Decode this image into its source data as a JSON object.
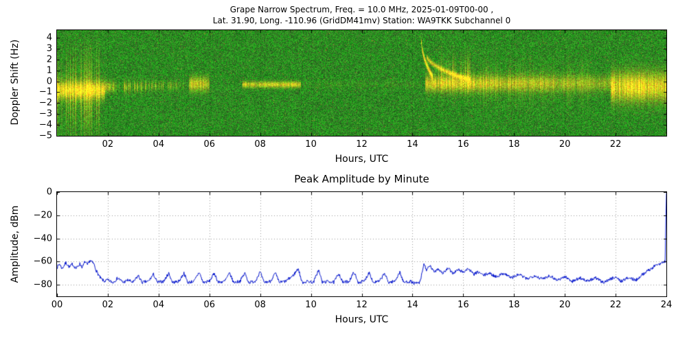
{
  "chart_data": [
    {
      "type": "heatmap",
      "title_lines": [
        "Grape Narrow Spectrum, Freq. = 10.0 MHz, 2025-01-09T00-00 ,",
        "Lat.  31.90, Long. -110.96 (GridDM41mv) Station: WA9TKK Subchannel 0"
      ],
      "xlabel": "Hours, UTC",
      "ylabel": "Doppler Shift (Hz)",
      "xlim": [
        0,
        24
      ],
      "ylim": [
        -5,
        4.7
      ],
      "x_ticks": [
        {
          "v": 2,
          "label": "02"
        },
        {
          "v": 4,
          "label": "04"
        },
        {
          "v": 6,
          "label": "06"
        },
        {
          "v": 8,
          "label": "08"
        },
        {
          "v": 10,
          "label": "10"
        },
        {
          "v": 12,
          "label": "12"
        },
        {
          "v": 14,
          "label": "14"
        },
        {
          "v": 16,
          "label": "16"
        },
        {
          "v": 18,
          "label": "18"
        },
        {
          "v": 20,
          "label": "20"
        },
        {
          "v": 22,
          "label": "22"
        }
      ],
      "y_ticks": [
        {
          "v": 4,
          "label": "4"
        },
        {
          "v": 3,
          "label": "3"
        },
        {
          "v": 2,
          "label": "2"
        },
        {
          "v": 1,
          "label": "1"
        },
        {
          "v": 0,
          "label": "0"
        },
        {
          "v": -1,
          "label": "−1"
        },
        {
          "v": -2,
          "label": "−2"
        },
        {
          "v": -3,
          "label": "−3"
        },
        {
          "v": -4,
          "label": "−4"
        },
        {
          "v": -5,
          "label": "−5"
        }
      ],
      "grid": true,
      "colors": {
        "background_noise": "#1c8a1c",
        "signal": "#ffee44"
      },
      "noise_seed": 42,
      "signal_bands": [
        {
          "h0": 0.0,
          "h1": 1.9,
          "center": -0.8,
          "width": 0.55,
          "strength": 1.0,
          "streaky": false
        },
        {
          "h0": 0.0,
          "h1": 1.7,
          "center": -1.2,
          "width": 2.3,
          "strength": 0.45,
          "streaky": true
        },
        {
          "h0": 1.9,
          "h1": 3.5,
          "center": -0.5,
          "width": 0.35,
          "strength": 0.7,
          "streaky": true
        },
        {
          "h0": 3.5,
          "h1": 5.1,
          "center": -0.4,
          "width": 0.3,
          "strength": 0.35,
          "streaky": true
        },
        {
          "h0": 5.2,
          "h1": 6.0,
          "center": -0.25,
          "width": 0.45,
          "strength": 0.75,
          "streaky": false
        },
        {
          "h0": 7.3,
          "h1": 9.6,
          "center": -0.3,
          "width": 0.2,
          "strength": 0.8,
          "streaky": false
        },
        {
          "h0": 9.6,
          "h1": 14.3,
          "center": -0.3,
          "width": 0.25,
          "strength": 0.1,
          "streaky": true
        },
        {
          "h0": 14.5,
          "h1": 21.8,
          "center": -0.2,
          "width": 0.5,
          "strength": 0.85,
          "fade_to": 0.55,
          "streaky": false
        },
        {
          "h0": 21.8,
          "h1": 24.0,
          "center": -0.5,
          "width": 0.9,
          "strength": 1.0,
          "streaky": false
        },
        {
          "h0": 15.0,
          "h1": 16.3,
          "center": 0.6,
          "width": 1.1,
          "strength": 0.45,
          "streaky": true
        },
        {
          "h0": 16.3,
          "h1": 21.0,
          "center": -0.2,
          "width": 1.3,
          "strength": 0.18,
          "streaky": true
        }
      ],
      "chirps": [
        {
          "h0": 14.35,
          "h1": 14.8,
          "y0": 3.9,
          "y1": 0.4,
          "sigma": 0.2,
          "strength": 1.0,
          "curve": 0.5
        },
        {
          "h0": 14.55,
          "h1": 16.3,
          "y0": 2.4,
          "y1": 0.1,
          "sigma": 0.16,
          "strength": 0.75,
          "curve": 0.55
        }
      ]
    },
    {
      "type": "line",
      "title": "Peak Amplitude by Minute",
      "xlabel": "Hours, UTC",
      "ylabel": "Amplitude, dBm",
      "xlim": [
        0,
        24
      ],
      "ylim": [
        -90,
        0
      ],
      "x_ticks": [
        {
          "v": 0,
          "label": "00"
        },
        {
          "v": 2,
          "label": "02"
        },
        {
          "v": 4,
          "label": "04"
        },
        {
          "v": 6,
          "label": "06"
        },
        {
          "v": 8,
          "label": "08"
        },
        {
          "v": 10,
          "label": "10"
        },
        {
          "v": 12,
          "label": "12"
        },
        {
          "v": 14,
          "label": "14"
        },
        {
          "v": 16,
          "label": "16"
        },
        {
          "v": 18,
          "label": "18"
        },
        {
          "v": 20,
          "label": "20"
        },
        {
          "v": 22,
          "label": "22"
        },
        {
          "v": 24,
          "label": "24"
        }
      ],
      "y_ticks": [
        {
          "v": 0,
          "label": "0"
        },
        {
          "v": -20,
          "label": "−20"
        },
        {
          "v": -40,
          "label": "−40"
        },
        {
          "v": -60,
          "label": "−60"
        },
        {
          "v": -80,
          "label": "−80"
        }
      ],
      "grid": true,
      "line_color": "#0011cc",
      "noise_amplitude": 1.4,
      "noise_seed": 7,
      "points": [
        [
          0.0,
          -65
        ],
        [
          0.1,
          -62
        ],
        [
          0.2,
          -66
        ],
        [
          0.35,
          -61
        ],
        [
          0.5,
          -65
        ],
        [
          0.6,
          -62
        ],
        [
          0.75,
          -66
        ],
        [
          0.9,
          -62
        ],
        [
          1.0,
          -65
        ],
        [
          1.1,
          -60
        ],
        [
          1.2,
          -63
        ],
        [
          1.3,
          -59
        ],
        [
          1.45,
          -62
        ],
        [
          1.55,
          -68
        ],
        [
          1.7,
          -74
        ],
        [
          1.85,
          -77
        ],
        [
          2.0,
          -76
        ],
        [
          2.2,
          -78
        ],
        [
          2.4,
          -74
        ],
        [
          2.6,
          -78
        ],
        [
          2.8,
          -76
        ],
        [
          3.0,
          -78
        ],
        [
          3.2,
          -72
        ],
        [
          3.35,
          -78
        ],
        [
          3.6,
          -77
        ],
        [
          3.8,
          -71
        ],
        [
          3.95,
          -78
        ],
        [
          4.2,
          -77
        ],
        [
          4.4,
          -70
        ],
        [
          4.55,
          -78
        ],
        [
          4.8,
          -77
        ],
        [
          5.0,
          -70
        ],
        [
          5.15,
          -78
        ],
        [
          5.4,
          -77
        ],
        [
          5.6,
          -69
        ],
        [
          5.75,
          -78
        ],
        [
          6.0,
          -77
        ],
        [
          6.2,
          -70
        ],
        [
          6.35,
          -78
        ],
        [
          6.6,
          -77
        ],
        [
          6.8,
          -70
        ],
        [
          6.95,
          -78
        ],
        [
          7.2,
          -77
        ],
        [
          7.4,
          -70
        ],
        [
          7.55,
          -78
        ],
        [
          7.8,
          -77
        ],
        [
          8.0,
          -69
        ],
        [
          8.15,
          -78
        ],
        [
          8.4,
          -77
        ],
        [
          8.6,
          -70
        ],
        [
          8.75,
          -78
        ],
        [
          9.0,
          -77
        ],
        [
          9.3,
          -72
        ],
        [
          9.5,
          -66
        ],
        [
          9.65,
          -78
        ],
        [
          9.9,
          -77
        ],
        [
          10.1,
          -78
        ],
        [
          10.3,
          -67
        ],
        [
          10.45,
          -78
        ],
        [
          10.7,
          -77
        ],
        [
          10.9,
          -78
        ],
        [
          11.1,
          -70
        ],
        [
          11.25,
          -78
        ],
        [
          11.5,
          -77
        ],
        [
          11.7,
          -69
        ],
        [
          11.85,
          -78
        ],
        [
          12.1,
          -77
        ],
        [
          12.3,
          -69
        ],
        [
          12.45,
          -78
        ],
        [
          12.7,
          -77
        ],
        [
          12.9,
          -70
        ],
        [
          13.05,
          -78
        ],
        [
          13.3,
          -77
        ],
        [
          13.5,
          -69
        ],
        [
          13.65,
          -78
        ],
        [
          13.9,
          -77
        ],
        [
          14.1,
          -79
        ],
        [
          14.3,
          -78
        ],
        [
          14.45,
          -62
        ],
        [
          14.55,
          -67
        ],
        [
          14.7,
          -64
        ],
        [
          14.85,
          -69
        ],
        [
          15.0,
          -66
        ],
        [
          15.2,
          -70
        ],
        [
          15.4,
          -66
        ],
        [
          15.6,
          -70
        ],
        [
          15.8,
          -67
        ],
        [
          16.0,
          -69
        ],
        [
          16.2,
          -66
        ],
        [
          16.4,
          -71
        ],
        [
          16.6,
          -69
        ],
        [
          16.8,
          -72
        ],
        [
          17.0,
          -70
        ],
        [
          17.3,
          -73
        ],
        [
          17.6,
          -70
        ],
        [
          17.9,
          -74
        ],
        [
          18.2,
          -71
        ],
        [
          18.5,
          -75
        ],
        [
          18.8,
          -72
        ],
        [
          19.1,
          -75
        ],
        [
          19.4,
          -72
        ],
        [
          19.7,
          -76
        ],
        [
          20.0,
          -73
        ],
        [
          20.3,
          -77
        ],
        [
          20.6,
          -74
        ],
        [
          20.9,
          -77
        ],
        [
          21.2,
          -74
        ],
        [
          21.5,
          -78
        ],
        [
          21.8,
          -75
        ],
        [
          22.0,
          -73
        ],
        [
          22.2,
          -77
        ],
        [
          22.5,
          -74
        ],
        [
          22.8,
          -76
        ],
        [
          23.0,
          -72
        ],
        [
          23.2,
          -69
        ],
        [
          23.4,
          -66
        ],
        [
          23.6,
          -63
        ],
        [
          23.8,
          -61
        ],
        [
          23.95,
          -60
        ],
        [
          24.0,
          -1
        ]
      ]
    }
  ]
}
